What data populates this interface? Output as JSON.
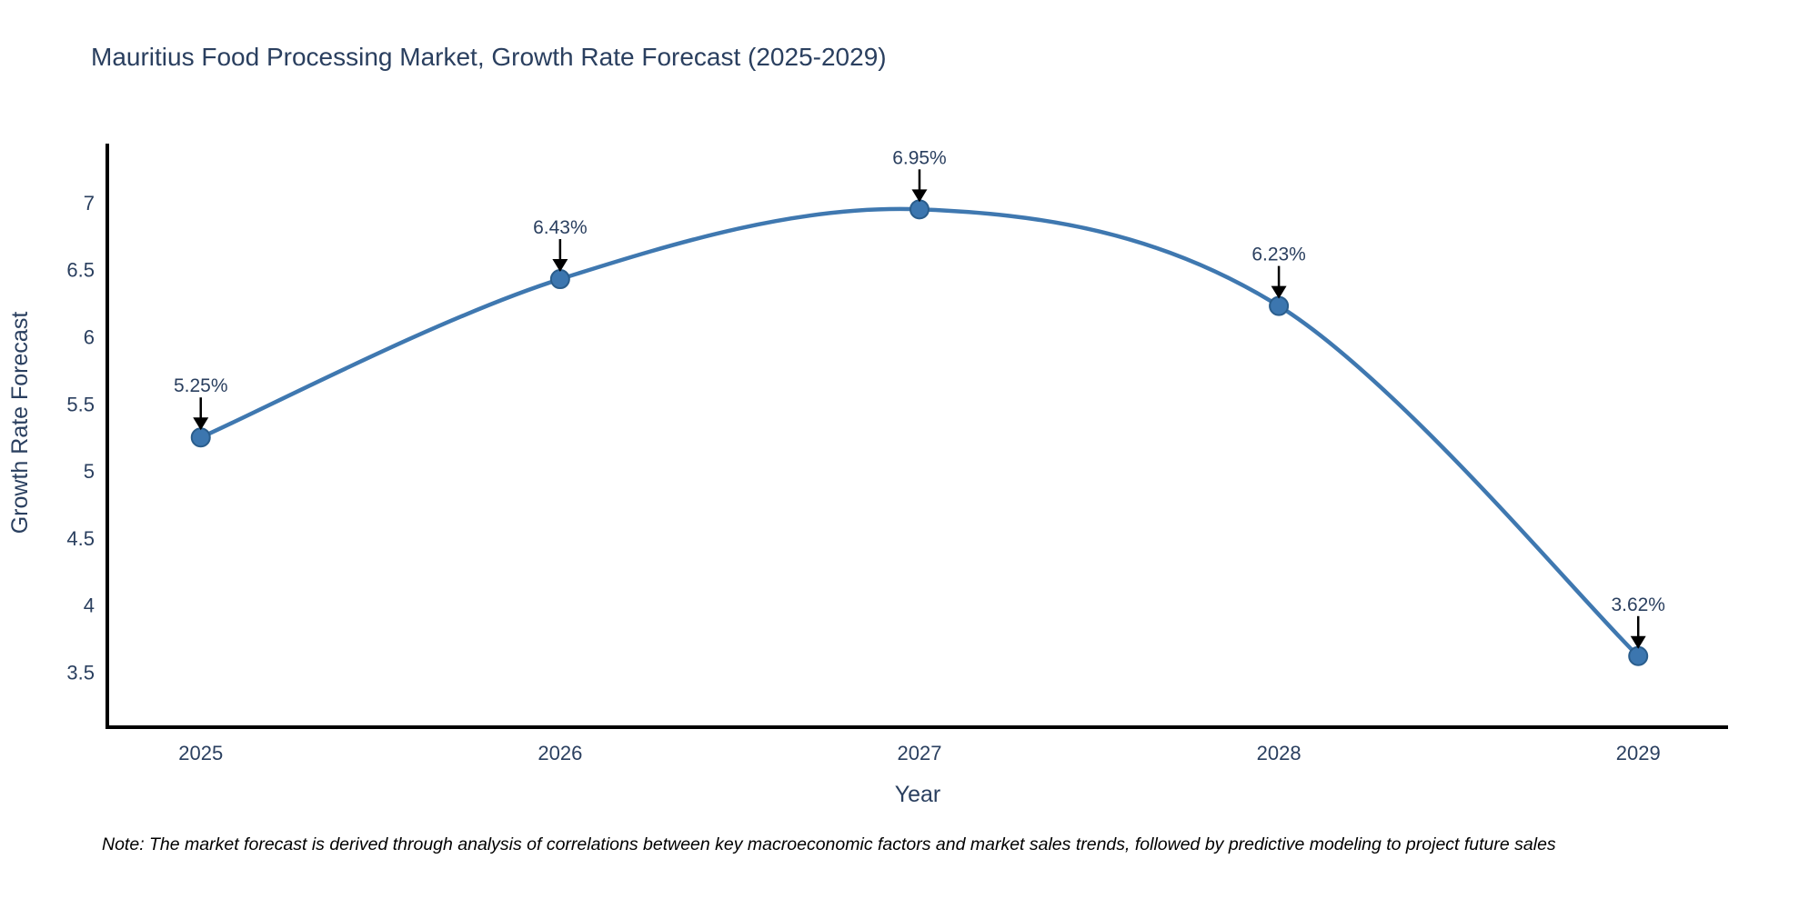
{
  "chart_data": {
    "type": "line",
    "title": "Mauritius Food Processing Market, Growth Rate Forecast (2025-2029)",
    "xlabel": "Year",
    "ylabel": "Growth Rate Forecast",
    "x": [
      2025,
      2026,
      2027,
      2028,
      2029
    ],
    "y": [
      5.25,
      6.43,
      6.95,
      6.23,
      3.62
    ],
    "point_labels": [
      "5.25%",
      "6.43%",
      "6.95%",
      "6.23%",
      "3.62%"
    ],
    "x_tick_labels": [
      "2025",
      "2026",
      "2027",
      "2028",
      "2029"
    ],
    "y_ticks": [
      3.5,
      4,
      4.5,
      5,
      5.5,
      6,
      6.5,
      7
    ],
    "y_tick_labels": [
      "3.5",
      "4",
      "4.5",
      "5",
      "5.5",
      "6",
      "6.5",
      "7"
    ],
    "x_range": [
      2024.74,
      2029.25
    ],
    "y_range": [
      3.09,
      7.44
    ],
    "line_shape": "spline",
    "grid": false,
    "legend_position": "none",
    "colors": {
      "line": "#3f78b0",
      "marker_fill": "#3c76af",
      "marker_edge": "#2a5d8c",
      "axis_line": "#000000",
      "text": "#2a3f5f",
      "annotation_arrow": "#000000",
      "background": "#ffffff"
    }
  },
  "note": {
    "text": "Note: The market forecast is derived through analysis of correlations between key macroeconomic factors and market sales trends, followed by predictive modeling to project future sales"
  }
}
